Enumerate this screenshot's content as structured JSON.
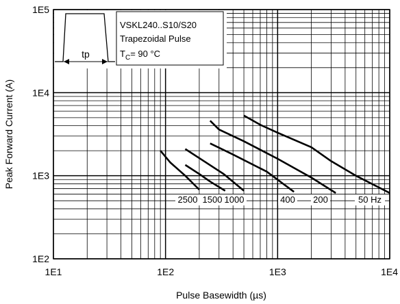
{
  "chart_data": {
    "type": "line",
    "x_scale": "log",
    "y_scale": "log",
    "xlim": [
      10,
      10000
    ],
    "ylim": [
      100,
      100000
    ],
    "grid": true,
    "xlabel": "Pulse Basewidth (µs)",
    "ylabel": "Peak Forward Current (A)",
    "x_ticks": [
      {
        "value": 10,
        "label": "1E1"
      },
      {
        "value": 100,
        "label": "1E2"
      },
      {
        "value": 1000,
        "label": "1E3"
      },
      {
        "value": 10000,
        "label": "1E4"
      }
    ],
    "y_ticks": [
      {
        "value": 100,
        "label": "1E2"
      },
      {
        "value": 1000,
        "label": "1E3"
      },
      {
        "value": 10000,
        "label": "1E4"
      },
      {
        "value": 100000,
        "label": "1E5"
      }
    ],
    "annotation": {
      "line1": "VSKL240..S10/S20",
      "line2": "Trapezoidal Pulse",
      "tc_prefix": "T",
      "tc_sub": "C",
      "tc_suffix": "= 90 °C",
      "pulse_label": "tp"
    },
    "series": [
      {
        "name": "2500",
        "points": [
          [
            90,
            2000
          ],
          [
            110,
            1450
          ],
          [
            150,
            1000
          ],
          [
            200,
            680
          ]
        ]
      },
      {
        "name": "1500",
        "points": [
          [
            150,
            1350
          ],
          [
            200,
            1050
          ],
          [
            250,
            850
          ],
          [
            340,
            660
          ]
        ]
      },
      {
        "name": "1000",
        "points": [
          [
            150,
            2100
          ],
          [
            220,
            1500
          ],
          [
            330,
            1050
          ],
          [
            500,
            660
          ]
        ]
      },
      {
        "name": "400",
        "points": [
          [
            250,
            2450
          ],
          [
            400,
            1800
          ],
          [
            800,
            1120
          ],
          [
            1400,
            640
          ]
        ]
      },
      {
        "name": "200",
        "points": [
          [
            250,
            4600
          ],
          [
            300,
            3600
          ],
          [
            500,
            2600
          ],
          [
            1000,
            1600
          ],
          [
            2000,
            950
          ],
          [
            3300,
            620
          ]
        ]
      },
      {
        "name": "50 Hz",
        "points": [
          [
            500,
            5300
          ],
          [
            700,
            4100
          ],
          [
            1000,
            3300
          ],
          [
            2000,
            2200
          ],
          [
            3000,
            1500
          ],
          [
            5000,
            1000
          ],
          [
            10000,
            620
          ]
        ]
      }
    ]
  }
}
